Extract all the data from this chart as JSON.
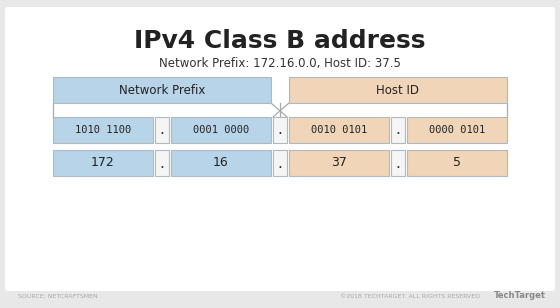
{
  "title": "IPv4 Class B address",
  "subtitle": "Network Prefix: 172.16.0.0, Host ID: 37.5",
  "background_color": "#e8e8e8",
  "panel_color": "#ffffff",
  "blue_color": "#b8d4e8",
  "peach_color": "#f0d5b8",
  "dot_box_color": "#f5f5f5",
  "top_labels": [
    "Network Prefix",
    "Host ID"
  ],
  "binary_row": [
    "1010 1100",
    "0001 0000",
    "0010 0101",
    "0000 0101"
  ],
  "decimal_row": [
    "172",
    "16",
    "37",
    "5"
  ],
  "footer_left": "SOURCE: NETCRAFTSMEN",
  "footer_right": "©2018 TECHTARGET. ALL RIGHTS RESERVED",
  "footer_logo": "TechTarget",
  "title_fontsize": 18,
  "subtitle_fontsize": 8.5,
  "label_fontsize": 8.5,
  "binary_fontsize": 7.5,
  "decimal_fontsize": 9,
  "footer_fontsize": 4.5,
  "line_color": "#aaaaaa",
  "border_color": "#b0b8c0",
  "text_color": "#333333",
  "title_color": "#222222"
}
